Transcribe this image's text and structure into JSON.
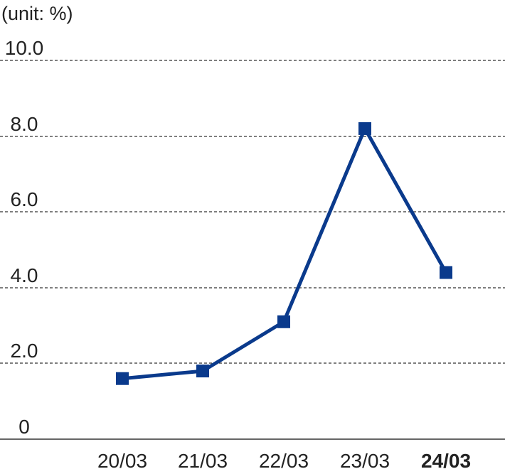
{
  "chart_data": {
    "type": "line",
    "unit_label": "(unit: %)",
    "categories": [
      "20/03",
      "21/03",
      "22/03",
      "23/03",
      "24/03"
    ],
    "highlight_category": "24/03",
    "series": [
      {
        "values": [
          1.6,
          1.8,
          3.1,
          8.2,
          4.4
        ]
      }
    ],
    "yticks": [
      "0",
      "2.0",
      "4.0",
      "6.0",
      "8.0",
      "10.0"
    ],
    "ylim": [
      0,
      10
    ],
    "grid": true,
    "color": "#0a3a8c"
  }
}
